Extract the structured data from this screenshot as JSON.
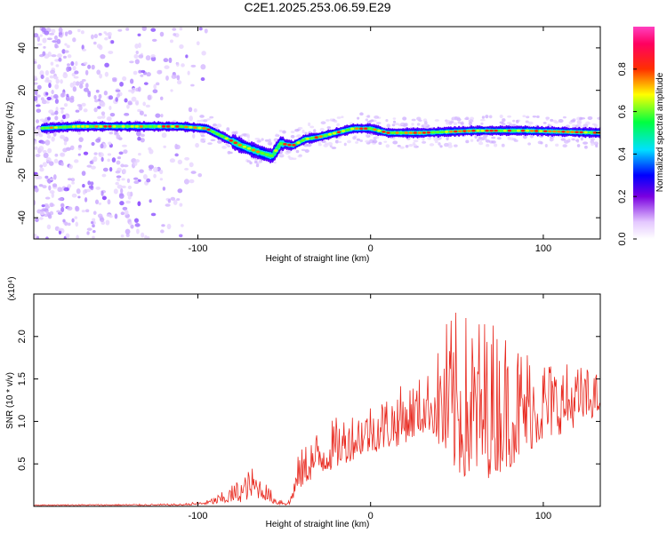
{
  "title": "C2E1.2025.253.06.59.E29",
  "colors": {
    "snr_line": "#e8281e",
    "background": "#ffffff"
  },
  "chart_data": [
    {
      "type": "heatmap",
      "name": "spectrogram",
      "xlabel": "Height of straight line (km)",
      "ylabel": "Frequency (Hz)",
      "xlim": [
        -195,
        133
      ],
      "ylim": [
        -50,
        50
      ],
      "xticks": [
        -100,
        0,
        100
      ],
      "yticks": [
        -40,
        -20,
        0,
        20,
        40
      ],
      "ridge": [
        [
          -195,
          2
        ],
        [
          -170,
          3
        ],
        [
          -140,
          3
        ],
        [
          -110,
          3
        ],
        [
          -95,
          2
        ],
        [
          -85,
          -2
        ],
        [
          -75,
          -6
        ],
        [
          -65,
          -9
        ],
        [
          -57,
          -11
        ],
        [
          -52,
          -5
        ],
        [
          -45,
          -6
        ],
        [
          -38,
          -3
        ],
        [
          -30,
          -2
        ],
        [
          -20,
          0
        ],
        [
          -10,
          2
        ],
        [
          0,
          2
        ],
        [
          10,
          0
        ],
        [
          30,
          0
        ],
        [
          60,
          1
        ],
        [
          90,
          1
        ],
        [
          133,
          0
        ]
      ],
      "colorbar": {
        "label": "Normalized spectral amplitude",
        "ticks": [
          0.0,
          0.2,
          0.4,
          0.6,
          0.8
        ],
        "range": [
          0,
          1
        ]
      }
    },
    {
      "type": "line",
      "name": "snr",
      "xlabel": "Height of straight line (km)",
      "ylabel": "SNR (10 * v/v)",
      "ymultiplier": "(x10⁴)",
      "xlim": [
        -195,
        133
      ],
      "ylim": [
        0,
        2.5
      ],
      "xticks": [
        -100,
        0,
        100
      ],
      "yticks": [
        0.5,
        1.0,
        1.5,
        2.0
      ],
      "envelope": [
        [
          -195,
          0.01,
          0.02
        ],
        [
          -110,
          0.01,
          0.03
        ],
        [
          -95,
          0.02,
          0.07
        ],
        [
          -85,
          0.03,
          0.18
        ],
        [
          -75,
          0.05,
          0.35
        ],
        [
          -68,
          0.1,
          0.48
        ],
        [
          -62,
          0.08,
          0.32
        ],
        [
          -55,
          0.02,
          0.12
        ],
        [
          -47,
          0.01,
          0.08
        ],
        [
          -42,
          0.18,
          0.6
        ],
        [
          -35,
          0.3,
          0.85
        ],
        [
          -25,
          0.4,
          1.0
        ],
        [
          -15,
          0.5,
          1.1
        ],
        [
          -5,
          0.6,
          1.2
        ],
        [
          5,
          0.65,
          1.3
        ],
        [
          15,
          0.7,
          1.4
        ],
        [
          25,
          0.8,
          1.5
        ],
        [
          35,
          0.9,
          1.6
        ],
        [
          45,
          0.4,
          2.3
        ],
        [
          55,
          0.3,
          2.3
        ],
        [
          65,
          0.3,
          2.3
        ],
        [
          75,
          0.4,
          2.2
        ],
        [
          85,
          0.5,
          2.0
        ],
        [
          95,
          0.7,
          1.9
        ],
        [
          105,
          0.8,
          1.75
        ],
        [
          115,
          0.9,
          1.7
        ],
        [
          125,
          1.0,
          1.65
        ],
        [
          133,
          1.1,
          1.55
        ]
      ]
    }
  ]
}
